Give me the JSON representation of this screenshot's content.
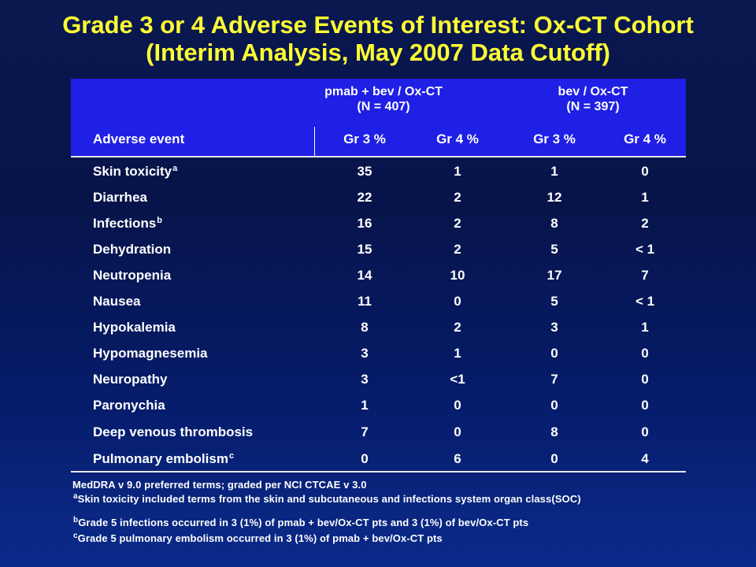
{
  "title": {
    "line1": "Grade 3 or 4 Adverse Events of Interest: Ox-CT Cohort",
    "line2": "(Interim Analysis, May 2007 Data Cutoff)"
  },
  "table": {
    "group1": {
      "name": "pmab + bev / Ox-CT",
      "n": "(N = 407)"
    },
    "group2": {
      "name": "bev / Ox-CT",
      "n": "(N = 397)"
    },
    "col_adverse_event": "Adverse event",
    "col_gr3": "Gr 3 %",
    "col_gr4": "Gr 4 %",
    "rows": [
      {
        "event": "Skin toxicity",
        "sup": "a",
        "v1": "35",
        "v2": "1",
        "v3": "1",
        "v4": "0"
      },
      {
        "event": "Diarrhea",
        "sup": "",
        "v1": "22",
        "v2": "2",
        "v3": "12",
        "v4": "1"
      },
      {
        "event": "Infections",
        "sup": "b",
        "v1": "16",
        "v2": "2",
        "v3": "8",
        "v4": "2"
      },
      {
        "event": "Dehydration",
        "sup": "",
        "v1": "15",
        "v2": "2",
        "v3": "5",
        "v4": "< 1"
      },
      {
        "event": "Neutropenia",
        "sup": "",
        "v1": "14",
        "v2": "10",
        "v3": "17",
        "v4": "7"
      },
      {
        "event": "Nausea",
        "sup": "",
        "v1": "11",
        "v2": "0",
        "v3": "5",
        "v4": "< 1"
      },
      {
        "event": "Hypokalemia",
        "sup": "",
        "v1": "8",
        "v2": "2",
        "v3": "3",
        "v4": "1"
      },
      {
        "event": "Hypomagnesemia",
        "sup": "",
        "v1": "3",
        "v2": "1",
        "v3": "0",
        "v4": "0"
      },
      {
        "event": "Neuropathy",
        "sup": "",
        "v1": "3",
        "v2": "<1",
        "v3": "7",
        "v4": "0"
      },
      {
        "event": "Paronychia",
        "sup": "",
        "v1": "1",
        "v2": "0",
        "v3": "0",
        "v4": "0"
      },
      {
        "event": "Deep venous thrombosis",
        "sup": "",
        "v1": "7",
        "v2": "0",
        "v3": "8",
        "v4": "0"
      },
      {
        "event": "Pulmonary embolism",
        "sup": "c",
        "v1": "0",
        "v2": "6",
        "v3": "0",
        "v4": "4"
      }
    ]
  },
  "footnotes": {
    "meddra": "MedDRA v 9.0 preferred terms; graded per NCI CTCAE v 3.0",
    "a_mark": "a",
    "a_text": "Skin toxicity included terms from the skin and subcutaneous and infections system organ class(SOC)",
    "b_mark": "b",
    "b_text": "Grade 5 infections occurred in 3 (1%) of pmab + bev/Ox-CT pts and 3 (1%) of bev/Ox-CT pts",
    "c_mark": "c",
    "c_text": "Grade 5 pulmonary embolism occurred in 3 (1%) of pmab + bev/Ox-CT pts"
  },
  "colors": {
    "title": "#ffff33",
    "header_fill": "#1f1fe6",
    "background": "#07144a",
    "text": "#ffffff"
  }
}
